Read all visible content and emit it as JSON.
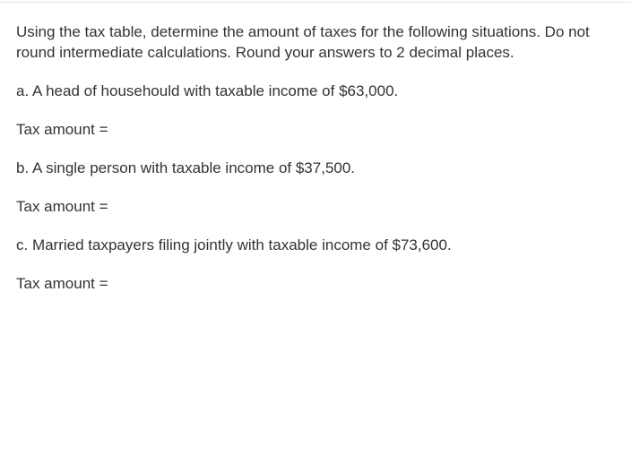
{
  "intro": "Using the tax table, determine the amount of taxes for the following situations. Do not round intermediate calculations. Round your answers to 2 decimal places.",
  "items": {
    "a": {
      "prompt": "a. A head of househould with taxable income of $63,000.",
      "answer_label": "Tax amount ="
    },
    "b": {
      "prompt": "b. A single person with taxable income of $37,500.",
      "answer_label": "Tax amount ="
    },
    "c": {
      "prompt": "c. Married taxpayers filing jointly with taxable income of $73,600.",
      "answer_label": "Tax amount ="
    }
  },
  "text_color": "#333333",
  "background_color": "#ffffff",
  "font_size_pt": 13
}
